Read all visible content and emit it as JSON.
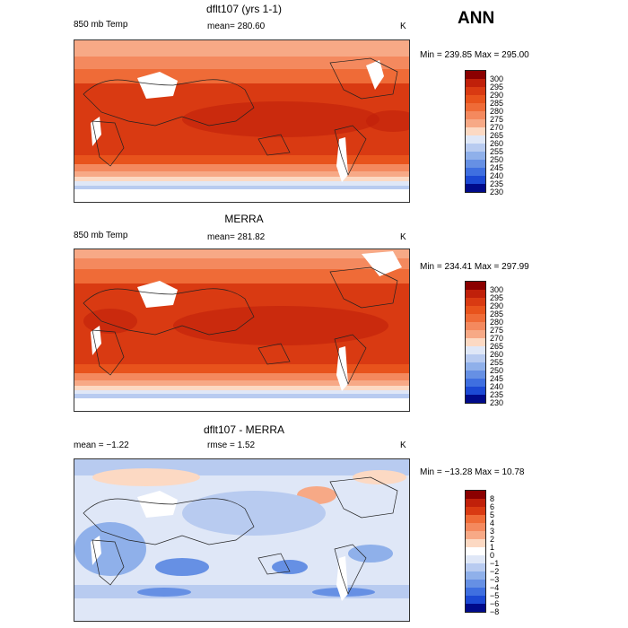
{
  "season": "ANN",
  "panels": [
    {
      "title": "dflt107 (yrs 1-1)",
      "left_label": "850 mb Temp",
      "center_label": "mean= 280.60",
      "unit": "K",
      "minmax": "Min = 239.85 Max = 295.00",
      "cb_labels": [
        "300",
        "295",
        "290",
        "285",
        "280",
        "275",
        "270",
        "265",
        "260",
        "255",
        "250",
        "245",
        "240",
        "235",
        "230"
      ]
    },
    {
      "title": "MERRA",
      "left_label": "850 mb Temp",
      "center_label": "mean= 281.82",
      "unit": "K",
      "minmax": "Min = 234.41 Max = 297.99",
      "cb_labels": [
        "300",
        "295",
        "290",
        "285",
        "280",
        "275",
        "270",
        "265",
        "260",
        "255",
        "250",
        "245",
        "240",
        "235",
        "230"
      ]
    },
    {
      "title": "dflt107 - MERRA",
      "left_label": "mean = −1.22",
      "center_label": "rmse = 1.52",
      "unit": "K",
      "minmax": "Min = −13.28 Max = 10.78",
      "cb_labels": [
        "8",
        "6",
        "5",
        "4",
        "3",
        "2",
        "1",
        "0",
        "−1",
        "−2",
        "−3",
        "−4",
        "−5",
        "−6",
        "−8"
      ]
    }
  ],
  "colors": {
    "abs_scale": [
      "#8b0000",
      "#c0200a",
      "#d93a12",
      "#e8531c",
      "#ef6b37",
      "#f4895e",
      "#f7a986",
      "#fcd9c3",
      "#dfe7f7",
      "#b8cbf0",
      "#8fb0ea",
      "#6690e4",
      "#3f6fe0",
      "#1c49d4",
      "#000a8a"
    ],
    "diff_scale": [
      "#8b0000",
      "#c0200a",
      "#d93a12",
      "#ef6b37",
      "#f4895e",
      "#f7a986",
      "#fcd9c3",
      "#ffffff",
      "#dfe7f7",
      "#b8cbf0",
      "#8fb0ea",
      "#6690e4",
      "#3f6fe0",
      "#1c49d4",
      "#000a8a"
    ]
  }
}
